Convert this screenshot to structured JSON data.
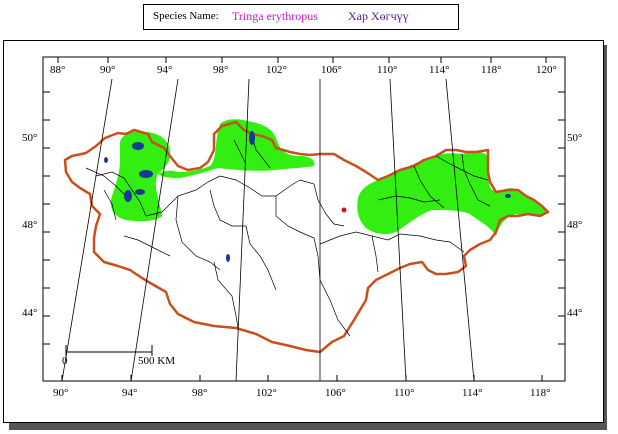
{
  "header": {
    "label": "Species Name:",
    "scientific_name": "Tringa erythropus",
    "mongolian_name": "Хар Хөгчүү"
  },
  "map": {
    "top_longitude_labels": [
      "88°",
      "90°",
      "94°",
      "98°",
      "102°",
      "106°",
      "110°",
      "114°",
      "118°",
      "120°"
    ],
    "bottom_longitude_labels": [
      "90°",
      "94°",
      "98°",
      "102°",
      "106°",
      "110°",
      "114°",
      "118°"
    ],
    "left_latitude_labels": [
      "50°",
      "48°",
      "44°"
    ],
    "right_latitude_labels": [
      "50°",
      "48°",
      "44°"
    ],
    "scale_bar": {
      "start_label": "0",
      "end_label": "500 KM"
    },
    "colors": {
      "range": "#33ee11",
      "border": "#c8501e",
      "rivers": "#000000",
      "lakes": "#1a3a9a"
    }
  }
}
